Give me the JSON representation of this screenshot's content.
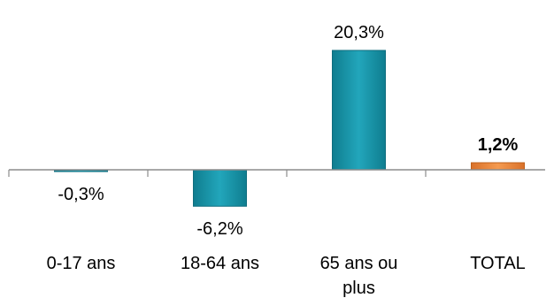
{
  "chart_data": {
    "type": "bar",
    "categories": [
      [
        "0-17 ans"
      ],
      [
        "18-64 ans"
      ],
      [
        "65 ans ou",
        "plus"
      ],
      [
        "TOTAL"
      ]
    ],
    "values": [
      -0.3,
      -6.2,
      20.3,
      1.2
    ],
    "labels": [
      "-0,3%",
      "-6,2%",
      "20,3%",
      "1,2%"
    ],
    "highlight_index": 3,
    "colors": {
      "bar": "#1b9bb0",
      "bar_dark": "#0f6d7e",
      "bar_light": "#3fb8cb",
      "highlight": "#f0893a",
      "highlight_dark": "#c0611a",
      "axis": "#8c8c8c"
    },
    "ylim": [
      -7,
      21
    ],
    "grid": false,
    "legend": "none"
  }
}
